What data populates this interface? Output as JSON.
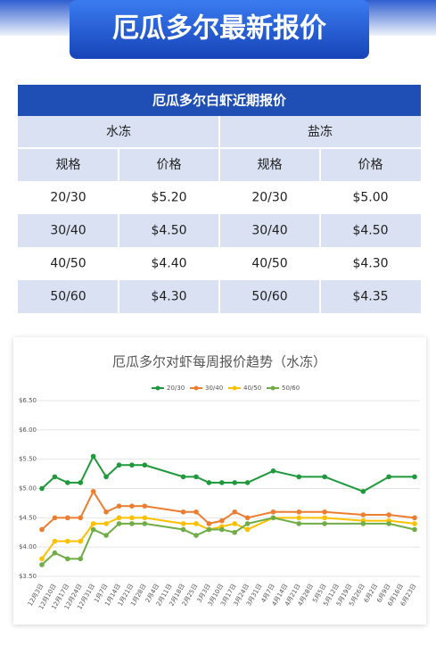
{
  "header": {
    "title": "厄瓜多尔最新报价"
  },
  "table": {
    "title": "厄瓜多尔白虾近期报价",
    "groups": [
      "水冻",
      "盐冻"
    ],
    "columns": [
      "规格",
      "价格",
      "规格",
      "价格"
    ],
    "rows": [
      [
        "20/30",
        "$5.20",
        "20/30",
        "$5.00"
      ],
      [
        "30/40",
        "$4.50",
        "30/40",
        "$4.50"
      ],
      [
        "40/50",
        "$4.40",
        "40/50",
        "$4.30"
      ],
      [
        "50/60",
        "$4.30",
        "50/60",
        "$4.35"
      ]
    ]
  },
  "chart_data": {
    "type": "line",
    "title": "厄瓜多尔对虾每周报价趋势（水冻）",
    "categories": [
      "12月3日",
      "12月10日",
      "12月17日",
      "12月24日",
      "12月31日",
      "1月7日",
      "1月14日",
      "1月21日",
      "1月28日",
      "2月4日",
      "2月11日",
      "2月18日",
      "2月25日",
      "3月3日",
      "3月10日",
      "3月17日",
      "3月24日",
      "3月31日",
      "4月7日",
      "4月14日",
      "4月21日",
      "4月28日",
      "5月5日",
      "5月12日",
      "5月19日",
      "5月26日",
      "6月2日",
      "6月9日",
      "6月16日",
      "6月23日"
    ],
    "ylim": [
      3.5,
      6.5
    ],
    "yticks": [
      {
        "value": 3.5,
        "label": "$3.50"
      },
      {
        "value": 4.0,
        "label": "$4.00"
      },
      {
        "value": 4.5,
        "label": "$4.50"
      },
      {
        "value": 5.0,
        "label": "$5.00"
      },
      {
        "value": 5.5,
        "label": "$5.50"
      },
      {
        "value": 6.0,
        "label": "$6.00"
      },
      {
        "value": 6.5,
        "label": "$6.50"
      }
    ],
    "series": [
      {
        "name": "20/30",
        "color": "#1e9a3c",
        "values": [
          5.0,
          5.2,
          5.1,
          5.1,
          5.55,
          5.2,
          5.4,
          5.4,
          5.4,
          null,
          null,
          5.2,
          5.2,
          5.1,
          5.1,
          5.1,
          5.1,
          null,
          5.3,
          null,
          5.2,
          null,
          5.2,
          null,
          null,
          4.95,
          null,
          5.2,
          null,
          5.2
        ]
      },
      {
        "name": "30/40",
        "color": "#ed7d31",
        "values": [
          4.3,
          4.5,
          4.5,
          4.5,
          4.95,
          4.6,
          4.7,
          4.7,
          4.7,
          null,
          null,
          4.6,
          4.6,
          4.4,
          4.45,
          4.6,
          4.5,
          null,
          4.6,
          null,
          4.6,
          null,
          4.6,
          null,
          null,
          4.55,
          null,
          4.55,
          null,
          4.5
        ]
      },
      {
        "name": "40/50",
        "color": "#ffc000",
        "values": [
          3.8,
          4.1,
          4.1,
          4.1,
          4.4,
          4.4,
          4.5,
          4.5,
          4.5,
          null,
          null,
          4.4,
          4.4,
          4.3,
          4.35,
          4.4,
          4.3,
          null,
          4.5,
          null,
          4.5,
          null,
          4.5,
          null,
          null,
          4.45,
          null,
          4.45,
          null,
          4.4
        ]
      },
      {
        "name": "50/60",
        "color": "#70ad47",
        "values": [
          3.7,
          3.9,
          3.8,
          3.8,
          4.3,
          4.2,
          4.4,
          4.4,
          4.4,
          null,
          null,
          4.3,
          4.2,
          4.3,
          4.3,
          4.25,
          4.4,
          null,
          4.5,
          null,
          4.4,
          null,
          4.4,
          null,
          null,
          4.4,
          null,
          4.4,
          null,
          4.3
        ]
      }
    ]
  }
}
